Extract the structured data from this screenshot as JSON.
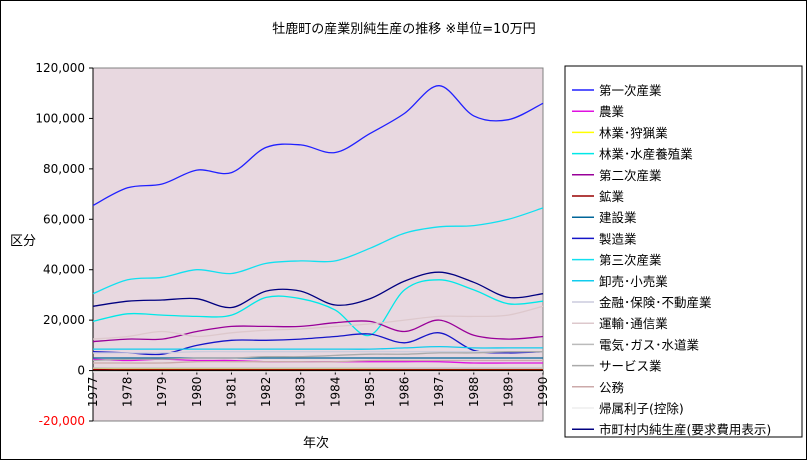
{
  "chart_data": {
    "type": "line",
    "title": "牡鹿町の産業別純生産の推移 ※単位=10万円",
    "xlabel": "年次",
    "ylabel": "区分",
    "ylim": [
      -20000,
      120000
    ],
    "y_ticks": [
      "-20,000",
      "0",
      "20,000",
      "40,000",
      "60,000",
      "80,000",
      "100,000",
      "120,000"
    ],
    "y_tick_values": [
      -20000,
      0,
      20000,
      40000,
      60000,
      80000,
      100000,
      120000
    ],
    "categories": [
      "1977",
      "1978",
      "1979",
      "1980",
      "1981",
      "1982",
      "1983",
      "1984",
      "1985",
      "1986",
      "1987",
      "1988",
      "1989",
      "1990"
    ],
    "grid": false,
    "legend_position": "right",
    "plot_background": "#e8d8e0",
    "series": [
      {
        "name": "第一次産業",
        "color": "#2020ff",
        "values": [
          65500,
          72500,
          74000,
          79500,
          78500,
          88500,
          89500,
          86500,
          94000,
          102000,
          113000,
          101000,
          99500,
          106000
        ]
      },
      {
        "name": "農業",
        "color": "#e010e0",
        "values": [
          4500,
          4000,
          4500,
          4000,
          4000,
          3500,
          3500,
          3500,
          3500,
          3500,
          3500,
          3000,
          3000,
          3000
        ]
      },
      {
        "name": "林業･狩猟業",
        "color": "#ffff00",
        "values": [
          800,
          700,
          700,
          700,
          600,
          500,
          500,
          500,
          500,
          400,
          400,
          400,
          400,
          400
        ]
      },
      {
        "name": "林業･水産養殖業",
        "color": "#00e8e8",
        "values": [
          19500,
          22500,
          22000,
          21500,
          22000,
          29000,
          28500,
          24000,
          14000,
          32000,
          36000,
          32000,
          26500,
          27500
        ]
      },
      {
        "name": "第二次産業",
        "color": "#990099",
        "values": [
          11500,
          12500,
          12500,
          15500,
          17500,
          17500,
          17500,
          19000,
          19500,
          15500,
          20000,
          14000,
          12500,
          13500
        ]
      },
      {
        "name": "鉱業",
        "color": "#990000",
        "values": [
          400,
          300,
          300,
          300,
          300,
          300,
          300,
          300,
          300,
          300,
          300,
          300,
          300,
          300
        ]
      },
      {
        "name": "建設業",
        "color": "#006699",
        "values": [
          5000,
          5000,
          5000,
          5000,
          5000,
          5000,
          5000,
          5000,
          5000,
          5000,
          5000,
          5000,
          5000,
          5000
        ]
      },
      {
        "name": "製造業",
        "color": "#1515c8",
        "values": [
          7500,
          7000,
          6500,
          10000,
          12000,
          12000,
          12500,
          13500,
          14500,
          11000,
          15000,
          8000,
          7000,
          7500
        ]
      },
      {
        "name": "第三次産業",
        "color": "#11e0f0",
        "values": [
          30500,
          36000,
          37000,
          40000,
          38500,
          42500,
          43500,
          43500,
          48500,
          54500,
          57000,
          57500,
          60000,
          64500
        ]
      },
      {
        "name": "卸売･小売業",
        "color": "#11ccee",
        "values": [
          8500,
          8500,
          8500,
          8500,
          8500,
          8500,
          8500,
          8500,
          8500,
          9000,
          9500,
          9000,
          9000,
          9000
        ]
      },
      {
        "name": "金融･保険･不動産業",
        "color": "#ccccdd",
        "values": [
          7000,
          7000,
          7000,
          7500,
          7500,
          7500,
          7500,
          7500,
          7500,
          7500,
          7500,
          7500,
          7500,
          7500
        ]
      },
      {
        "name": "運輸･通信業",
        "color": "#ddc8cc",
        "values": [
          12500,
          13500,
          15500,
          13500,
          15000,
          16000,
          16500,
          17500,
          18500,
          20000,
          21500,
          21500,
          22000,
          25500
        ]
      },
      {
        "name": "電気･ガス･水道業",
        "color": "#bbbbbb",
        "values": [
          1000,
          1000,
          1000,
          1000,
          1000,
          1000,
          1000,
          1000,
          1000,
          1000,
          1000,
          1000,
          1000,
          1000
        ]
      },
      {
        "name": "サービス業",
        "color": "#aaaaaa",
        "values": [
          4000,
          4500,
          4500,
          5000,
          5000,
          5500,
          5500,
          6000,
          6500,
          6500,
          7000,
          7000,
          7500,
          7500
        ]
      },
      {
        "name": "公務",
        "color": "#ccaaaa",
        "values": [
          3000,
          3000,
          3000,
          3500,
          3500,
          3500,
          3500,
          3500,
          4000,
          4000,
          4000,
          4000,
          4000,
          4000
        ]
      },
      {
        "name": "帰属利子(控除)",
        "color": "#eeeeee",
        "values": [
          -500,
          -500,
          -500,
          -500,
          -500,
          -500,
          -500,
          -500,
          -500,
          -500,
          -500,
          -500,
          -500,
          -500
        ]
      },
      {
        "name": "市町村内純生産(要求費用表示)",
        "color": "#000080",
        "values": [
          25500,
          27500,
          28000,
          28500,
          25000,
          31500,
          31500,
          26000,
          28500,
          35500,
          39000,
          35000,
          29000,
          30500
        ]
      }
    ]
  }
}
